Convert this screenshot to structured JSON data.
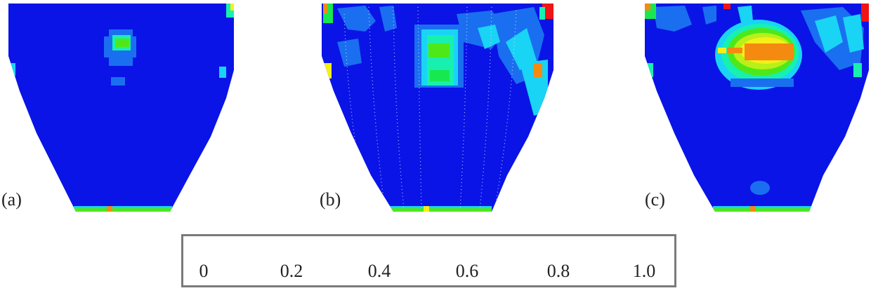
{
  "panels": [
    {
      "label": "(a)"
    },
    {
      "label": "(b)"
    },
    {
      "label": "(c)"
    }
  ],
  "colorbar": {
    "colors": [
      "#0a14e6",
      "#1a6ff0",
      "#19d4f5",
      "#18f0b0",
      "#18e850",
      "#4ee81a",
      "#b8f018",
      "#f5f01a",
      "#f58a10",
      "#f01414"
    ],
    "tick_labels": [
      "0",
      "0.2",
      "0.4",
      "0.6",
      "0.8",
      "1.0"
    ]
  },
  "palette": {
    "field_base": "#0a14e6"
  }
}
